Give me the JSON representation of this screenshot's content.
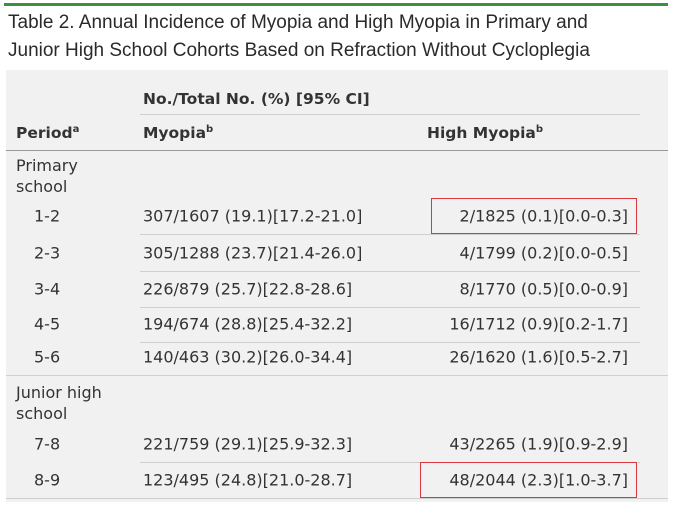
{
  "title": [
    "Table 2. Annual Incidence of Myopia and High Myopia in Primary and",
    "Junior High School Cohorts Based on Refraction Without Cycloplegia"
  ],
  "table": {
    "group_header": "No./Total No. (%) [95% CI]",
    "columns": [
      {
        "text": "Period",
        "sup": "a"
      },
      {
        "text": "Myopia",
        "sup": "b"
      },
      {
        "text": "High Myopia",
        "sup": "b"
      }
    ],
    "sections": [
      {
        "label": "Primary school",
        "rows": [
          [
            "1-2",
            "307/1607 (19.1)[17.2-21.0]",
            "2/1825 (0.1)[0.0-0.3]"
          ],
          [
            "2-3",
            "305/1288 (23.7)[21.4-26.0]",
            "4/1799 (0.2)[0.0-0.5]"
          ],
          [
            "3-4",
            "226/879 (25.7)[22.8-28.6]",
            "8/1770 (0.5)[0.0-0.9]"
          ],
          [
            "4-5",
            "194/674 (28.8)[25.4-32.2]",
            "16/1712 (0.9)[0.2-1.7]"
          ],
          [
            "5-6",
            "140/463 (30.2)[26.0-34.4]",
            "26/1620 (1.6)[0.5-2.7]"
          ]
        ]
      },
      {
        "label": "Junior high school",
        "rows": [
          [
            "7-8",
            "221/759 (29.1)[25.9-32.3]",
            "43/2265 (1.9)[0.9-2.9]"
          ],
          [
            "8-9",
            "123/495 (24.8)[21.0-28.7]",
            "48/2044 (2.3)[1.0-3.7]"
          ]
        ]
      }
    ]
  }
}
